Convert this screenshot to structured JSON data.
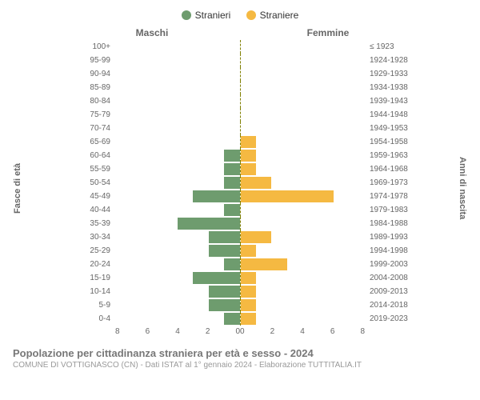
{
  "legend": {
    "male": {
      "label": "Stranieri",
      "color": "#6e9c6e"
    },
    "female": {
      "label": "Straniere",
      "color": "#f5b942"
    }
  },
  "top_labels": {
    "male": "Maschi",
    "female": "Femmine"
  },
  "axis_titles": {
    "left": "Fasce di età",
    "right": "Anni di nascita"
  },
  "x_axis": {
    "max": 8,
    "ticks_left": [
      "8",
      "6",
      "4",
      "2",
      "0"
    ],
    "ticks_right": [
      "0",
      "2",
      "4",
      "6",
      "8"
    ]
  },
  "rows": [
    {
      "age": "100+",
      "birth": "≤ 1923",
      "m": 0,
      "f": 0
    },
    {
      "age": "95-99",
      "birth": "1924-1928",
      "m": 0,
      "f": 0
    },
    {
      "age": "90-94",
      "birth": "1929-1933",
      "m": 0,
      "f": 0
    },
    {
      "age": "85-89",
      "birth": "1934-1938",
      "m": 0,
      "f": 0
    },
    {
      "age": "80-84",
      "birth": "1939-1943",
      "m": 0,
      "f": 0
    },
    {
      "age": "75-79",
      "birth": "1944-1948",
      "m": 0,
      "f": 0
    },
    {
      "age": "70-74",
      "birth": "1949-1953",
      "m": 0,
      "f": 0
    },
    {
      "age": "65-69",
      "birth": "1954-1958",
      "m": 0,
      "f": 1
    },
    {
      "age": "60-64",
      "birth": "1959-1963",
      "m": 1,
      "f": 1
    },
    {
      "age": "55-59",
      "birth": "1964-1968",
      "m": 1,
      "f": 1
    },
    {
      "age": "50-54",
      "birth": "1969-1973",
      "m": 1,
      "f": 2
    },
    {
      "age": "45-49",
      "birth": "1974-1978",
      "m": 3,
      "f": 6
    },
    {
      "age": "40-44",
      "birth": "1979-1983",
      "m": 1,
      "f": 0
    },
    {
      "age": "35-39",
      "birth": "1984-1988",
      "m": 4,
      "f": 0
    },
    {
      "age": "30-34",
      "birth": "1989-1993",
      "m": 2,
      "f": 2
    },
    {
      "age": "25-29",
      "birth": "1994-1998",
      "m": 2,
      "f": 1
    },
    {
      "age": "20-24",
      "birth": "1999-2003",
      "m": 1,
      "f": 3
    },
    {
      "age": "15-19",
      "birth": "2004-2008",
      "m": 3,
      "f": 1
    },
    {
      "age": "10-14",
      "birth": "2009-2013",
      "m": 2,
      "f": 1
    },
    {
      "age": "5-9",
      "birth": "2014-2018",
      "m": 2,
      "f": 1
    },
    {
      "age": "0-4",
      "birth": "2019-2023",
      "m": 1,
      "f": 1
    }
  ],
  "caption": {
    "title": "Popolazione per cittadinanza straniera per età e sesso - 2024",
    "subtitle": "COMUNE DI VOTTIGNASCO (CN) - Dati ISTAT al 1° gennaio 2024 - Elaborazione TUTTITALIA.IT"
  },
  "style": {
    "chart_bg": "#ffffff",
    "tick_color": "#666666",
    "midline_color": "#808000"
  }
}
